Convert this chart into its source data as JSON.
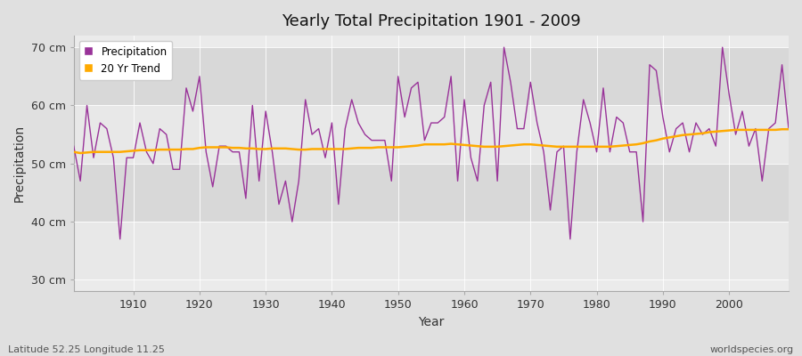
{
  "title": "Yearly Total Precipitation 1901 - 2009",
  "xlabel": "Year",
  "ylabel": "Precipitation",
  "subtitle_left": "Latitude 52.25 Longitude 11.25",
  "subtitle_right": "worldspecies.org",
  "line_color": "#993399",
  "trend_color": "#ffaa00",
  "bg_color": "#e0e0e0",
  "plot_bg_color": "#ebebeb",
  "band1_color": "#e8e8e8",
  "band2_color": "#d8d8d8",
  "grid_color": "#ffffff",
  "ylim": [
    28,
    72
  ],
  "yticks": [
    30,
    40,
    50,
    60,
    70
  ],
  "ytick_labels": [
    "30 cm",
    "40 cm",
    "50 cm",
    "60 cm",
    "70 cm"
  ],
  "years": [
    1901,
    1902,
    1903,
    1904,
    1905,
    1906,
    1907,
    1908,
    1909,
    1910,
    1911,
    1912,
    1913,
    1914,
    1915,
    1916,
    1917,
    1918,
    1919,
    1920,
    1921,
    1922,
    1923,
    1924,
    1925,
    1926,
    1927,
    1928,
    1929,
    1930,
    1931,
    1932,
    1933,
    1934,
    1935,
    1936,
    1937,
    1938,
    1939,
    1940,
    1941,
    1942,
    1943,
    1944,
    1945,
    1946,
    1947,
    1948,
    1949,
    1950,
    1951,
    1952,
    1953,
    1954,
    1955,
    1956,
    1957,
    1958,
    1959,
    1960,
    1961,
    1962,
    1963,
    1964,
    1965,
    1966,
    1967,
    1968,
    1969,
    1970,
    1971,
    1972,
    1973,
    1974,
    1975,
    1976,
    1977,
    1978,
    1979,
    1980,
    1981,
    1982,
    1983,
    1984,
    1985,
    1986,
    1987,
    1988,
    1989,
    1990,
    1991,
    1992,
    1993,
    1994,
    1995,
    1996,
    1997,
    1998,
    1999,
    2000,
    2001,
    2002,
    2003,
    2004,
    2005,
    2006,
    2007,
    2008,
    2009
  ],
  "precipitation": [
    53,
    47,
    60,
    51,
    57,
    56,
    51,
    37,
    51,
    51,
    57,
    52,
    50,
    56,
    55,
    49,
    49,
    63,
    59,
    65,
    52,
    46,
    53,
    53,
    52,
    52,
    44,
    60,
    47,
    59,
    52,
    43,
    47,
    40,
    47,
    61,
    55,
    56,
    51,
    57,
    43,
    56,
    61,
    57,
    55,
    54,
    54,
    54,
    47,
    65,
    58,
    63,
    64,
    54,
    57,
    57,
    58,
    65,
    47,
    61,
    51,
    47,
    60,
    64,
    47,
    70,
    64,
    56,
    56,
    64,
    57,
    52,
    42,
    52,
    53,
    37,
    52,
    61,
    57,
    52,
    63,
    52,
    58,
    57,
    52,
    52,
    40,
    67,
    66,
    58,
    52,
    56,
    57,
    52,
    57,
    55,
    56,
    53,
    70,
    62,
    55,
    59,
    53,
    56,
    47,
    56,
    57,
    67,
    56
  ],
  "trend": [
    52.0,
    51.8,
    51.9,
    52.0,
    52.0,
    52.0,
    52.0,
    52.0,
    52.1,
    52.2,
    52.3,
    52.3,
    52.3,
    52.4,
    52.4,
    52.4,
    52.4,
    52.5,
    52.5,
    52.7,
    52.8,
    52.8,
    52.8,
    52.8,
    52.7,
    52.7,
    52.6,
    52.6,
    52.5,
    52.5,
    52.6,
    52.6,
    52.6,
    52.5,
    52.4,
    52.4,
    52.5,
    52.5,
    52.5,
    52.5,
    52.5,
    52.5,
    52.6,
    52.7,
    52.7,
    52.7,
    52.8,
    52.8,
    52.8,
    52.8,
    52.9,
    53.0,
    53.1,
    53.3,
    53.3,
    53.3,
    53.3,
    53.4,
    53.3,
    53.2,
    53.1,
    53.0,
    52.9,
    52.9,
    52.9,
    53.0,
    53.1,
    53.2,
    53.3,
    53.3,
    53.2,
    53.1,
    53.0,
    52.9,
    52.9,
    52.9,
    52.9,
    52.9,
    52.9,
    52.9,
    52.9,
    52.9,
    53.0,
    53.1,
    53.2,
    53.3,
    53.5,
    53.8,
    54.0,
    54.3,
    54.5,
    54.7,
    54.9,
    55.0,
    55.1,
    55.2,
    55.4,
    55.5,
    55.6,
    55.7,
    55.8,
    55.8,
    55.8,
    55.8,
    55.8,
    55.8,
    55.8,
    55.9,
    55.9
  ]
}
